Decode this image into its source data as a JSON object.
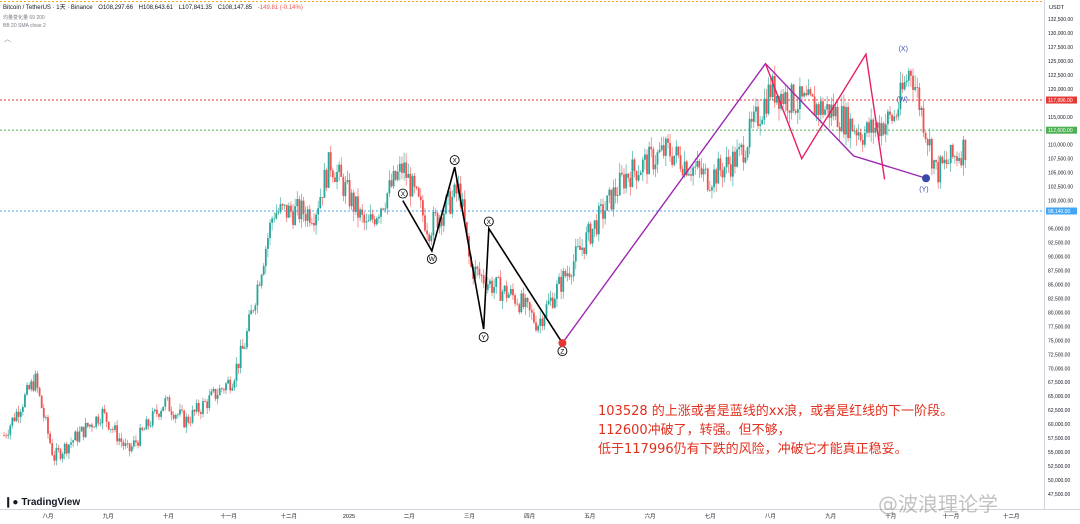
{
  "header": {
    "symbol": "Bitcoin / TetherUS · 1天 · Binance",
    "open": "O108,297.66",
    "high": "H108,643.61",
    "low": "L107,841.35",
    "close": "C108,147.85",
    "change": "-149.81 (-0.14%)",
    "indicator1": "均量变化量 69 200",
    "indicator2": "BB 20 SMA close 2"
  },
  "axis_unit": "USDT",
  "price_labels": {
    "level_117996": "117,996.00",
    "level_112600": "112,600.00",
    "level_98140": "98,140.00"
  },
  "annotation_lines": [
    "103528 的上涨或者是蓝线的xx浪，或者是红线的下一阶段。",
    "112600冲破了，转强。但不够，",
    "低于117996仍有下跌的风险，冲破它才能真正稳妥。"
  ],
  "branding": {
    "logo_text": "TradingView"
  },
  "watermark": "@波浪理论学",
  "colors": {
    "up_candle": "#26a69a",
    "down_candle": "#ef5350",
    "wave_black": "#000000",
    "wave_purple": "#9c27b0",
    "wave_red": "#e91e63",
    "level_red": "#e53935",
    "level_green": "#4caf50",
    "level_blue": "#42a5f5",
    "annotation_text": "#e0301e"
  },
  "chart_data": {
    "type": "candlestick",
    "title": "Bitcoin / TetherUS · 1天 · Binance",
    "ylabel": "USDT",
    "ylim": [
      47500,
      135000
    ],
    "y_ticks": [
      "132,500.00",
      "130,000.00",
      "127,500.00",
      "125,000.00",
      "122,500.00",
      "120,000.00",
      "115,000.00",
      "110,000.00",
      "107,500.00",
      "105,000.00",
      "102,500.00",
      "100,000.00",
      "95,000.00",
      "92,500.00",
      "90,000.00",
      "87,500.00",
      "85,000.00",
      "82,500.00",
      "80,000.00",
      "77,500.00",
      "75,000.00",
      "72,500.00",
      "70,000.00",
      "67,500.00",
      "65,000.00",
      "62,500.00",
      "60,000.00",
      "57,500.00",
      "55,000.00",
      "52,500.00",
      "50,000.00",
      "47,500.00"
    ],
    "x_ticks": [
      "八月",
      "九月",
      "十月",
      "十一月",
      "十二月",
      "2025",
      "二月",
      "三月",
      "四月",
      "五月",
      "六月",
      "七月",
      "八月",
      "九月",
      "十月",
      "十一月",
      "十二月"
    ],
    "price_path": [
      {
        "x": 0.0,
        "y": 58000
      },
      {
        "x": 0.03,
        "y": 68000
      },
      {
        "x": 0.048,
        "y": 54000
      },
      {
        "x": 0.095,
        "y": 62000
      },
      {
        "x": 0.12,
        "y": 55000
      },
      {
        "x": 0.155,
        "y": 64000
      },
      {
        "x": 0.175,
        "y": 60500
      },
      {
        "x": 0.22,
        "y": 68000
      },
      {
        "x": 0.232,
        "y": 74000
      },
      {
        "x": 0.26,
        "y": 98000
      },
      {
        "x": 0.3,
        "y": 98000
      },
      {
        "x": 0.315,
        "y": 107000
      },
      {
        "x": 0.35,
        "y": 95000
      },
      {
        "x": 0.385,
        "y": 106000
      },
      {
        "x": 0.41,
        "y": 95000
      },
      {
        "x": 0.44,
        "y": 102000
      },
      {
        "x": 0.45,
        "y": 88000
      },
      {
        "x": 0.47,
        "y": 85000
      },
      {
        "x": 0.495,
        "y": 82500
      },
      {
        "x": 0.515,
        "y": 78000
      },
      {
        "x": 0.535,
        "y": 84500
      },
      {
        "x": 0.565,
        "y": 94000
      },
      {
        "x": 0.6,
        "y": 104500
      },
      {
        "x": 0.64,
        "y": 109000
      },
      {
        "x": 0.68,
        "y": 104000
      },
      {
        "x": 0.71,
        "y": 108000
      },
      {
        "x": 0.74,
        "y": 120000
      },
      {
        "x": 0.76,
        "y": 118000
      },
      {
        "x": 0.8,
        "y": 116000
      },
      {
        "x": 0.83,
        "y": 112000
      },
      {
        "x": 0.86,
        "y": 115000
      },
      {
        "x": 0.875,
        "y": 124000
      },
      {
        "x": 0.9,
        "y": 105000
      },
      {
        "x": 0.93,
        "y": 110000
      }
    ],
    "wave_labels": [
      "X",
      "W",
      "X",
      "Y",
      "Z",
      "X",
      "W",
      "Y"
    ],
    "black_wave_points": [
      {
        "label": "X",
        "date_frac": 0.385,
        "price": 100000
      },
      {
        "label": "W",
        "date_frac": 0.413,
        "price": 91000
      },
      {
        "label": "X",
        "date_frac": 0.435,
        "price": 106000
      },
      {
        "label": "Y",
        "date_frac": 0.463,
        "price": 77000
      },
      {
        "label": "X",
        "date_frac": 0.468,
        "price": 95000
      },
      {
        "label": "Z",
        "date_frac": 0.539,
        "price": 74500
      }
    ],
    "purple_wave_points": [
      {
        "date_frac": 0.539,
        "price": 74500
      },
      {
        "date_frac": 0.735,
        "price": 124500
      },
      {
        "date_frac": 0.82,
        "price": 108000
      },
      {
        "date_frac": 0.89,
        "price": 104000
      }
    ],
    "red_wave_points": [
      {
        "date_frac": 0.735,
        "price": 124500
      },
      {
        "date_frac": 0.77,
        "price": 107500
      },
      {
        "date_frac": 0.832,
        "price": 126200
      },
      {
        "date_frac": 0.85,
        "price": 103800
      }
    ],
    "levels": [
      117996,
      112600,
      98140
    ],
    "grid": false
  }
}
